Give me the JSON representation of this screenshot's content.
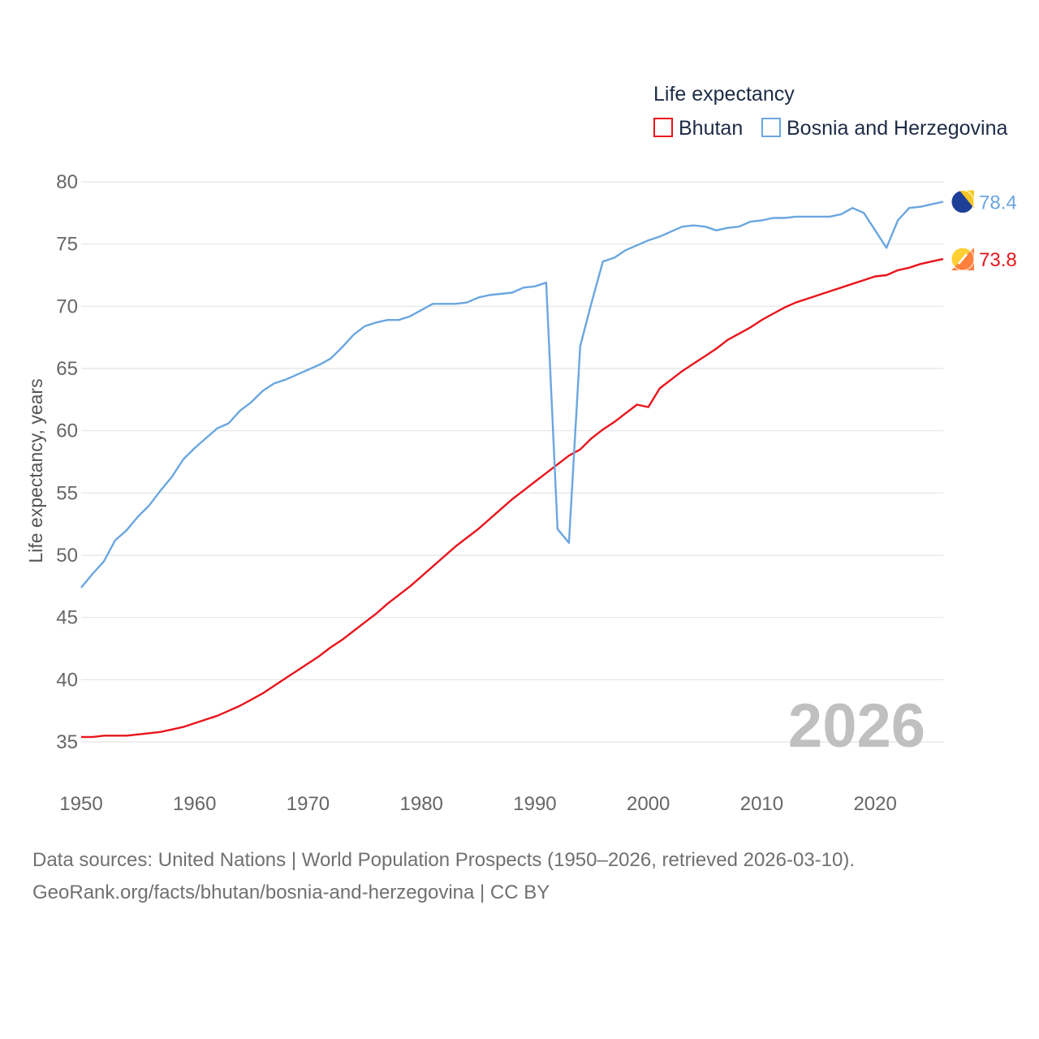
{
  "chart_data": {
    "type": "line",
    "title": "Life expectancy",
    "ylabel": "Life expectancy, years",
    "xlabel": "",
    "xlim": [
      1950,
      2026
    ],
    "ylim": [
      35,
      80
    ],
    "xticks": [
      1950,
      1960,
      1970,
      1980,
      1990,
      2000,
      2010,
      2020
    ],
    "yticks": [
      35,
      40,
      45,
      50,
      55,
      60,
      65,
      70,
      75,
      80
    ],
    "grid": true,
    "legend_position": "top-right",
    "current_year": "2026",
    "series": [
      {
        "name": "Bhutan",
        "color": "#e8141b",
        "end_label": "73.8",
        "x": [
          1950,
          1951,
          1952,
          1953,
          1954,
          1955,
          1956,
          1957,
          1958,
          1959,
          1960,
          1961,
          1962,
          1963,
          1964,
          1965,
          1966,
          1967,
          1968,
          1969,
          1970,
          1971,
          1972,
          1973,
          1974,
          1975,
          1976,
          1977,
          1978,
          1979,
          1980,
          1981,
          1982,
          1983,
          1984,
          1985,
          1986,
          1987,
          1988,
          1989,
          1990,
          1991,
          1992,
          1993,
          1994,
          1995,
          1996,
          1997,
          1998,
          1999,
          2000,
          2001,
          2002,
          2003,
          2004,
          2005,
          2006,
          2007,
          2008,
          2009,
          2010,
          2011,
          2012,
          2013,
          2014,
          2015,
          2016,
          2017,
          2018,
          2019,
          2020,
          2021,
          2022,
          2023,
          2024,
          2025,
          2026
        ],
        "values": [
          35.4,
          35.4,
          35.5,
          35.5,
          35.5,
          35.6,
          35.7,
          35.8,
          36.0,
          36.2,
          36.5,
          36.8,
          37.1,
          37.5,
          37.9,
          38.4,
          38.9,
          39.5,
          40.1,
          40.7,
          41.3,
          41.9,
          42.6,
          43.2,
          43.9,
          44.6,
          45.3,
          46.1,
          46.8,
          47.5,
          48.3,
          49.1,
          49.9,
          50.7,
          51.4,
          52.1,
          52.9,
          53.7,
          54.5,
          55.2,
          55.9,
          56.6,
          57.3,
          58.0,
          58.5,
          59.4,
          60.1,
          60.7,
          61.4,
          62.1,
          61.9,
          63.4,
          64.1,
          64.8,
          65.4,
          66.0,
          66.6,
          67.3,
          67.8,
          68.3,
          68.9,
          69.4,
          69.9,
          70.3,
          70.6,
          70.9,
          71.2,
          71.5,
          71.8,
          72.1,
          72.4,
          72.5,
          72.9,
          73.1,
          73.4,
          73.6,
          73.8
        ]
      },
      {
        "name": "Bosnia and Herzegovina",
        "color": "#6aa6e0",
        "end_label": "78.4",
        "x": [
          1950,
          1951,
          1952,
          1953,
          1954,
          1955,
          1956,
          1957,
          1958,
          1959,
          1960,
          1961,
          1962,
          1963,
          1964,
          1965,
          1966,
          1967,
          1968,
          1969,
          1970,
          1971,
          1972,
          1973,
          1974,
          1975,
          1976,
          1977,
          1978,
          1979,
          1980,
          1981,
          1982,
          1983,
          1984,
          1985,
          1986,
          1987,
          1988,
          1989,
          1990,
          1991,
          1992,
          1993,
          1994,
          1995,
          1996,
          1997,
          1998,
          1999,
          2000,
          2001,
          2002,
          2003,
          2004,
          2005,
          2006,
          2007,
          2008,
          2009,
          2010,
          2011,
          2012,
          2013,
          2014,
          2015,
          2016,
          2017,
          2018,
          2019,
          2020,
          2021,
          2022,
          2023,
          2024,
          2025,
          2026
        ],
        "values": [
          47.4,
          48.5,
          49.5,
          51.2,
          52.0,
          53.1,
          54.0,
          55.2,
          56.3,
          57.7,
          58.6,
          59.4,
          60.2,
          60.6,
          61.6,
          62.3,
          63.2,
          63.8,
          64.1,
          64.5,
          64.9,
          65.3,
          65.8,
          66.7,
          67.7,
          68.4,
          68.7,
          68.9,
          68.9,
          69.2,
          69.7,
          70.2,
          70.2,
          70.2,
          70.3,
          70.7,
          70.9,
          71.0,
          71.1,
          71.5,
          71.6,
          71.9,
          52.1,
          51.0,
          66.8,
          70.3,
          73.6,
          73.9,
          74.5,
          74.9,
          75.3,
          75.6,
          76.0,
          76.4,
          76.5,
          76.4,
          76.1,
          76.3,
          76.4,
          76.8,
          76.9,
          77.1,
          77.1,
          77.2,
          77.2,
          77.2,
          77.2,
          77.4,
          77.9,
          77.5,
          76.1,
          74.7,
          76.9,
          77.9,
          78.0,
          78.2,
          78.4
        ]
      }
    ]
  },
  "source": {
    "line1": "Data sources: United Nations | World Population Prospects (1950–2026, retrieved 2026-03-10).",
    "line2": "GeoRank.org/facts/bhutan/bosnia-and-herzegovina | CC BY"
  }
}
